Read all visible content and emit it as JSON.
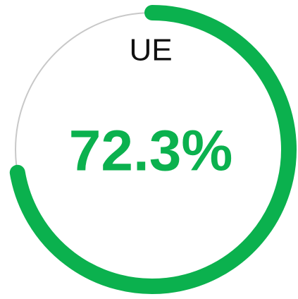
{
  "chart_data": {
    "type": "gauge",
    "title": "UE",
    "values": [
      72.3
    ],
    "value_labels": [
      "72.3%"
    ],
    "ylim": [
      0,
      100
    ],
    "color": "#0bb14e",
    "track_color": "#c8c8c8"
  }
}
